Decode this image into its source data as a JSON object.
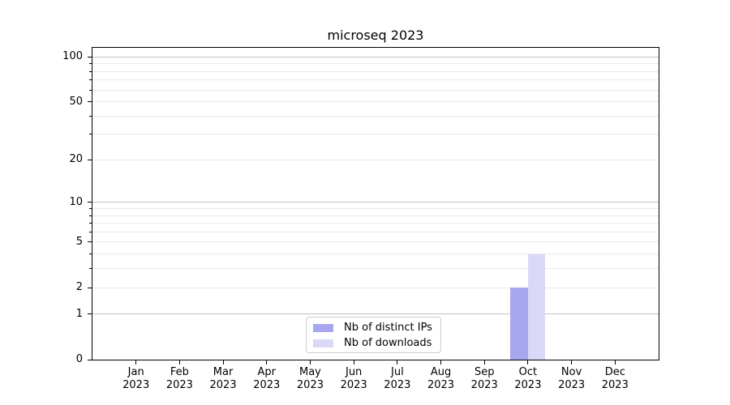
{
  "chart_data": {
    "type": "bar",
    "title": "microseq 2023",
    "categories": [
      "Jan",
      "Feb",
      "Mar",
      "Apr",
      "May",
      "Jun",
      "Jul",
      "Aug",
      "Sep",
      "Oct",
      "Nov",
      "Dec"
    ],
    "category_year": "2023",
    "series": [
      {
        "name": "Nb of distinct IPs",
        "color": "#a7a7f0",
        "values": [
          0,
          0,
          0,
          0,
          0,
          0,
          0,
          0,
          0,
          2,
          0,
          0
        ]
      },
      {
        "name": "Nb of downloads",
        "color": "#d9d9f7",
        "values": [
          0,
          0,
          0,
          0,
          0,
          0,
          0,
          0,
          0,
          4,
          0,
          0
        ]
      }
    ],
    "y_axis": {
      "scale": "log1p",
      "major_tick_labels": [
        0,
        1,
        2,
        5,
        10,
        20,
        50,
        100
      ],
      "major_gridlines": [
        1,
        10,
        100
      ],
      "minor_gridlines": [
        2,
        3,
        4,
        5,
        6,
        7,
        8,
        9,
        20,
        30,
        40,
        50,
        60,
        70,
        80,
        90
      ],
      "max_value": 115
    },
    "xlabel": "",
    "ylabel": "",
    "grid": true,
    "legend_position": "lower center"
  },
  "colors": {
    "background": "#ffffff",
    "spine": "#000000",
    "major_grid": "#c2c2c2",
    "minor_grid": "#e9e9e9",
    "legend_border": "#cccccc",
    "text": "#000000"
  }
}
